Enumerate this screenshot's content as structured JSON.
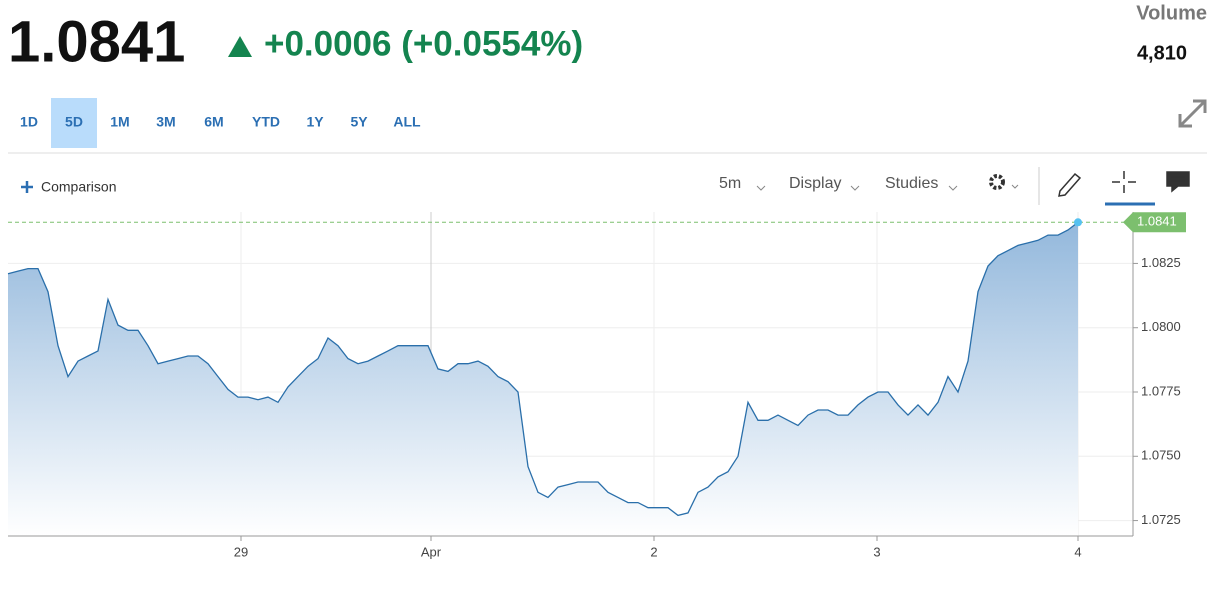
{
  "header": {
    "price": "1.0841",
    "change": "+0.0006 (+0.0554%)",
    "volume_label": "Volume",
    "volume": "4,810"
  },
  "ranges": {
    "buttons": [
      "1D",
      "5D",
      "1M",
      "3M",
      "6M",
      "YTD",
      "1Y",
      "5Y",
      "ALL"
    ],
    "active": "5D"
  },
  "toolbar": {
    "comparison": "Comparison",
    "interval": "5m",
    "display": "Display",
    "studies": "Studies"
  },
  "chart_data": {
    "type": "area",
    "color": "#2a6faa",
    "values": [
      1.0821,
      1.0822,
      1.0823,
      1.0823,
      1.0814,
      1.0793,
      1.0781,
      1.0787,
      1.0789,
      1.0791,
      1.0811,
      1.0801,
      1.0799,
      1.0799,
      1.0793,
      1.0786,
      1.0787,
      1.0788,
      1.0789,
      1.0789,
      1.0786,
      1.0781,
      1.0776,
      1.0773,
      1.0773,
      1.0772,
      1.0773,
      1.0771,
      1.0777,
      1.0781,
      1.0785,
      1.0788,
      1.0796,
      1.0793,
      1.0788,
      1.0786,
      1.0787,
      1.0789,
      1.0791,
      1.0793,
      1.0793,
      1.0793,
      1.0793,
      1.0784,
      1.0783,
      1.0786,
      1.0786,
      1.0787,
      1.0785,
      1.0781,
      1.0779,
      1.0775,
      1.0746,
      1.0736,
      1.0734,
      1.0738,
      1.0739,
      1.074,
      1.074,
      1.074,
      1.0736,
      1.0734,
      1.0732,
      1.0732,
      1.073,
      1.073,
      1.073,
      1.0727,
      1.0728,
      1.0736,
      1.0738,
      1.0742,
      1.0744,
      1.075,
      1.0771,
      1.0764,
      1.0764,
      1.0766,
      1.0764,
      1.0762,
      1.0766,
      1.0768,
      1.0768,
      1.0766,
      1.0766,
      1.077,
      1.0773,
      1.0775,
      1.0775,
      1.077,
      1.0766,
      1.077,
      1.0766,
      1.0771,
      1.0781,
      1.0775,
      1.0787,
      1.0814,
      1.0824,
      1.0828,
      1.083,
      1.0832,
      1.0833,
      1.0834,
      1.0836,
      1.0836,
      1.0838,
      1.0841
    ],
    "xlim": [
      0,
      112.5
    ],
    "xticks": [
      {
        "value": 23.3,
        "label": "29"
      },
      {
        "value": 42.3,
        "label": "Apr"
      },
      {
        "value": 64.6,
        "label": "2"
      },
      {
        "value": 86.9,
        "label": "3"
      },
      {
        "value": 107,
        "label": "4"
      }
    ],
    "ylim": [
      1.0719,
      1.0845
    ],
    "yticks": [
      1.0725,
      {
        "value": 1.075,
        "label": "1.0750"
      },
      1.0775,
      {
        "value": 1.08,
        "label": "1.0800"
      },
      1.0825
    ],
    "grid": true,
    "last_color": "#7cbf6e"
  }
}
